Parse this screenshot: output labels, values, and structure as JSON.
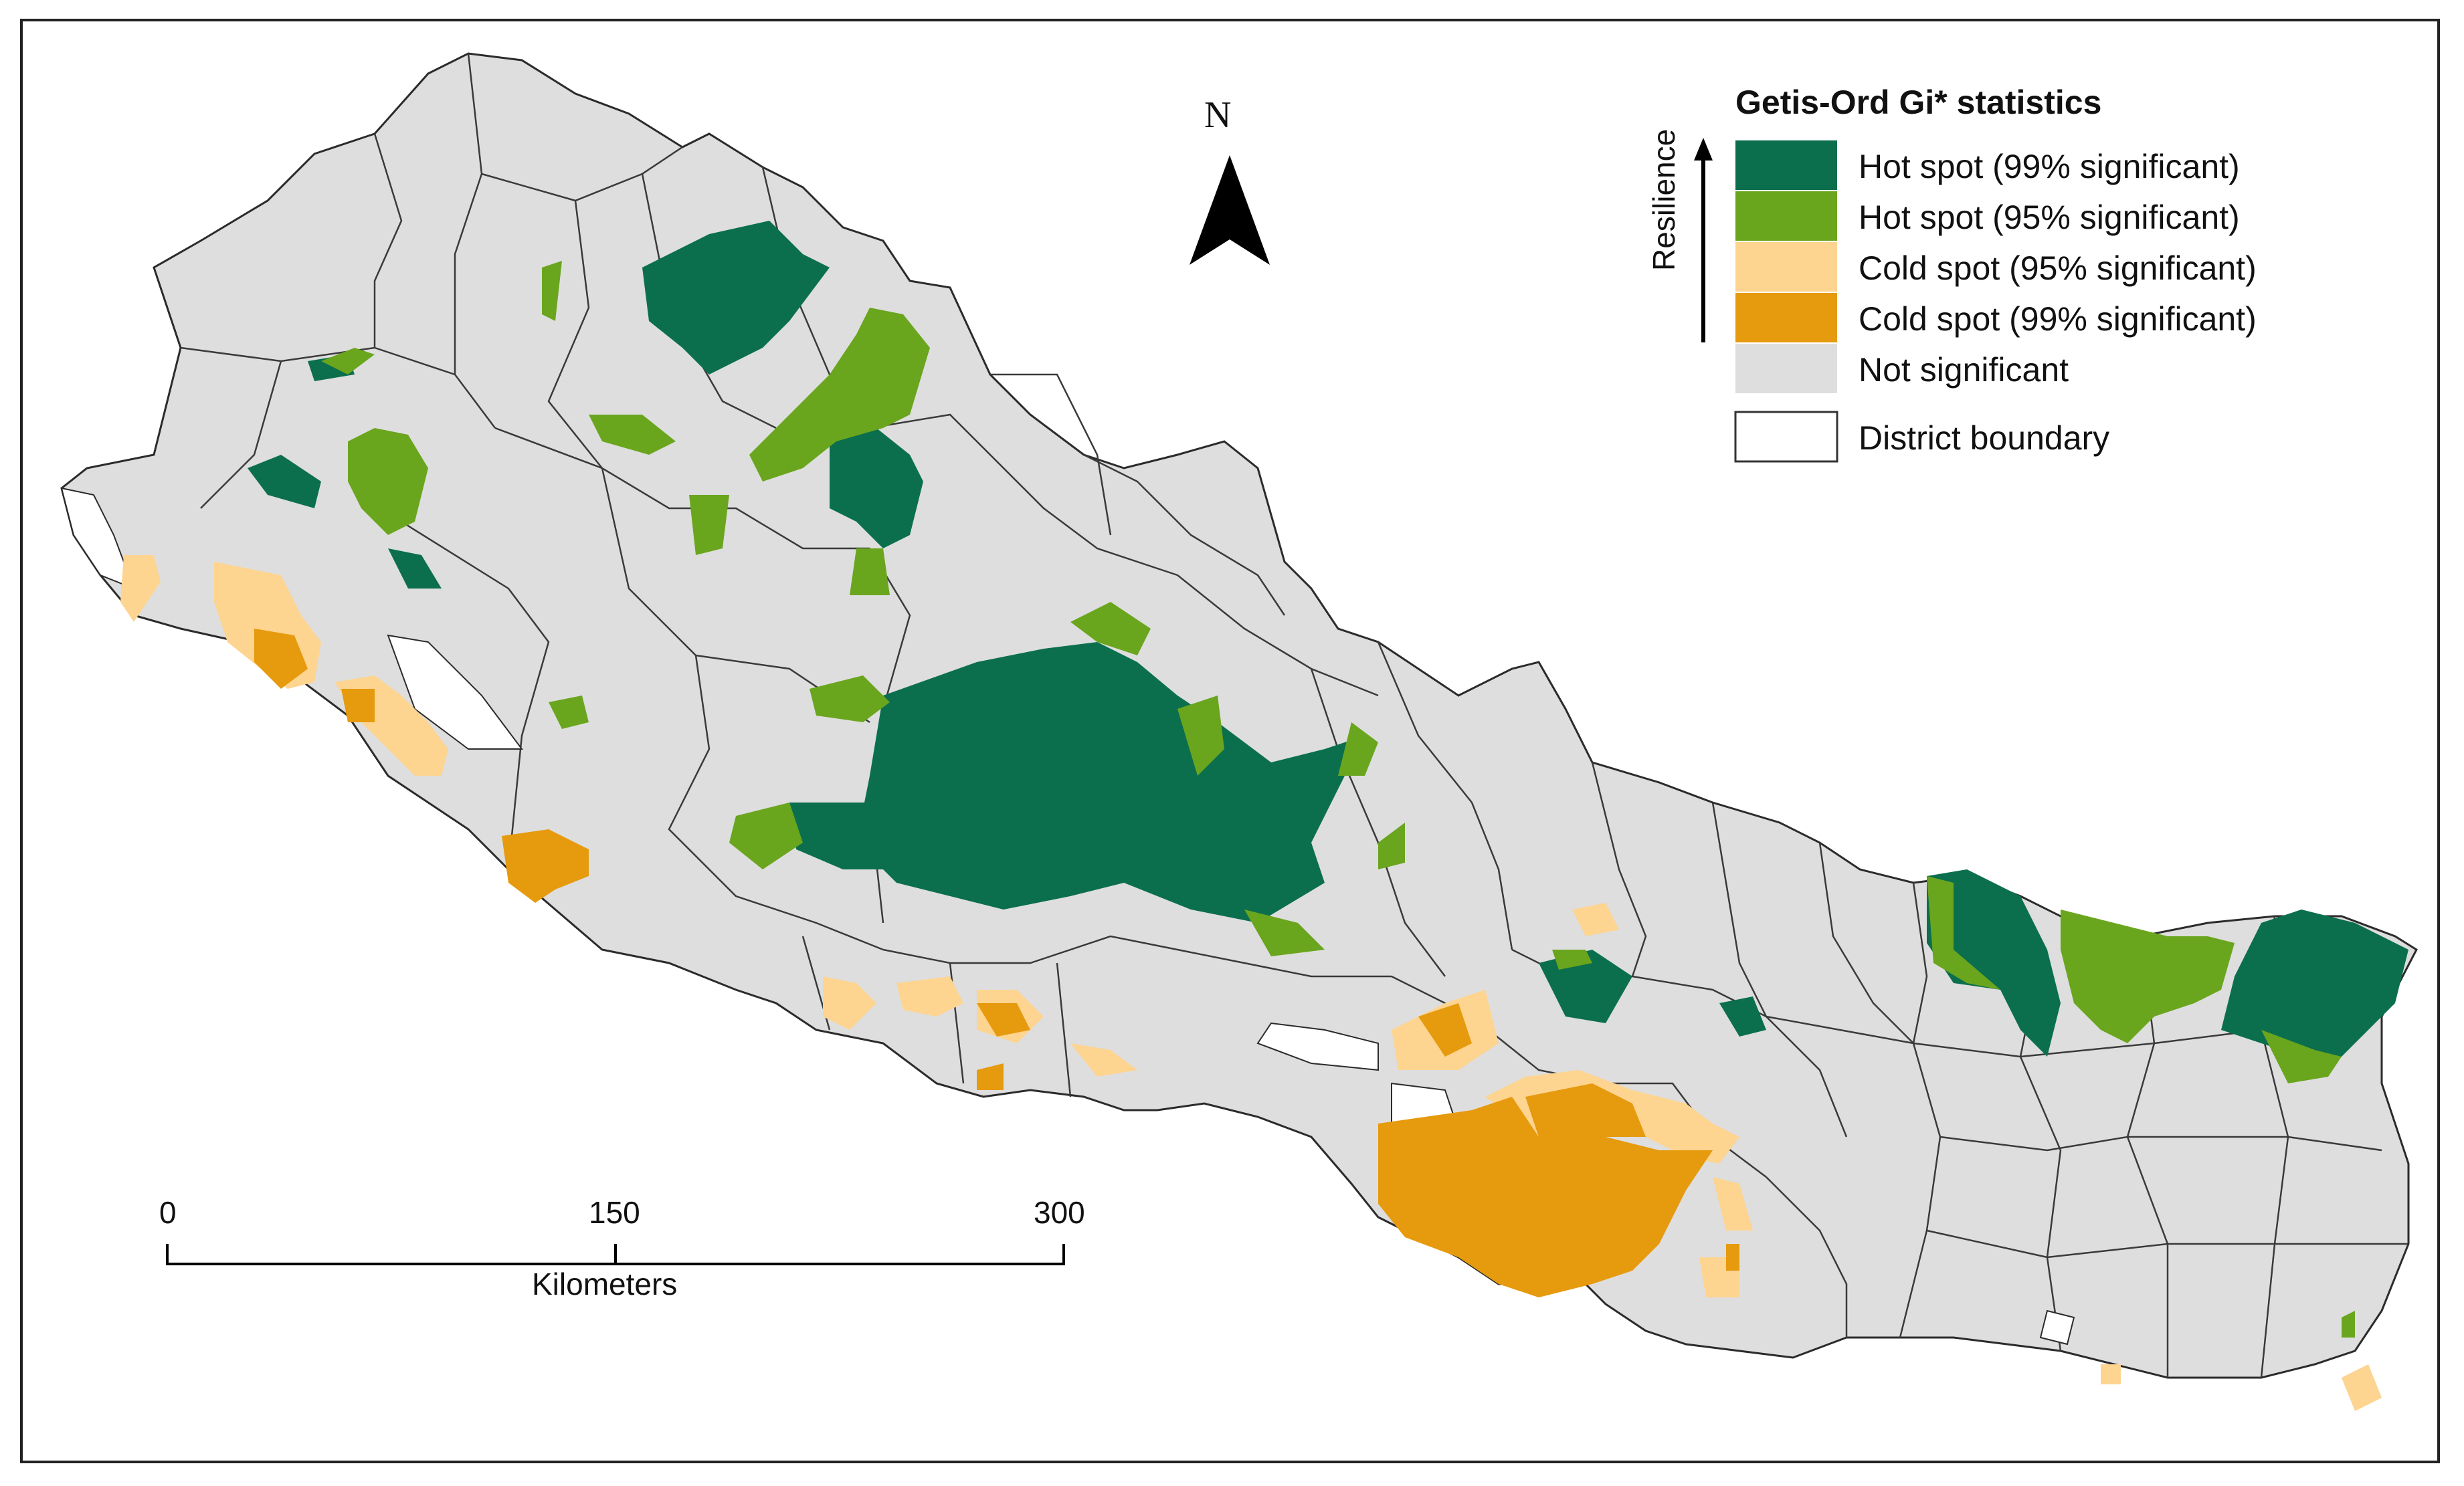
{
  "legend": {
    "title": "Getis-Ord Gi* statistics",
    "axis_label": "Resilience",
    "items": [
      {
        "label": "Hot spot (99% significant)",
        "color": "#0b6f4d"
      },
      {
        "label": "Hot spot (95% significant)",
        "color": "#6aa51e"
      },
      {
        "label": "Cold spot (95% significant)",
        "color": "#fdd490"
      },
      {
        "label": "Cold spot (99% significant)",
        "color": "#e69a0e"
      },
      {
        "label": "Not significant",
        "color": "#dedede"
      },
      {
        "label": "District boundary",
        "color": "#ffffff"
      }
    ]
  },
  "north_arrow": {
    "label": "N",
    "icon": "north-arrow-icon"
  },
  "scale_bar": {
    "ticks": [
      "0",
      "150",
      "300"
    ],
    "unit": "Kilometers"
  },
  "map": {
    "background_color": "#dedede",
    "boundary_color": "#2b2b2b"
  }
}
